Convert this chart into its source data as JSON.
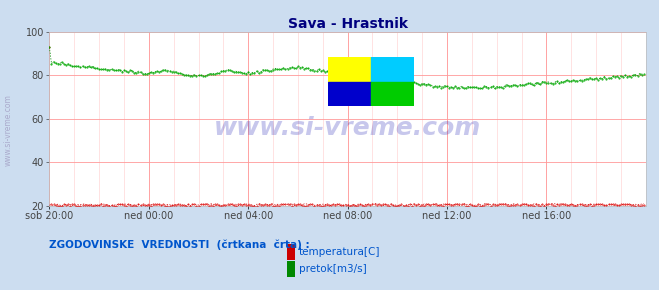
{
  "title": "Sava - Hrastnik",
  "title_color": "#000080",
  "bg_color": "#ccddf0",
  "plot_bg_color": "#ffffff",
  "grid_color_h": "#ff9999",
  "grid_color_v": "#ffcccc",
  "xlim": [
    0,
    288
  ],
  "ylim": [
    20,
    100
  ],
  "yticks": [
    20,
    40,
    60,
    80,
    100
  ],
  "xtick_labels": [
    "sob 20:00",
    "ned 00:00",
    "ned 04:00",
    "ned 08:00",
    "ned 12:00",
    "ned 16:00"
  ],
  "xtick_positions": [
    0,
    48,
    96,
    144,
    192,
    240
  ],
  "watermark": "www.si-vreme.com",
  "watermark_color": "#0000aa",
  "temp_color": "#dd0000",
  "flow_color": "#00aa00",
  "hist_temp_color": "#cc0000",
  "hist_flow_color": "#008800",
  "legend_label": "ZGODOVINSKE  VREDNOSTI  (črtkana  črta) :",
  "legend_temp": "temperatura[C]",
  "legend_flow": "pretok[m3/s]",
  "legend_color": "#0055cc",
  "n_points": 288,
  "logo_yellow": "#ffff00",
  "logo_cyan": "#00ccff",
  "logo_blue": "#0000cc",
  "logo_green": "#00cc00",
  "ylabel_text": "www.si-vreme.com",
  "ylabel_color": "#aaaacc"
}
